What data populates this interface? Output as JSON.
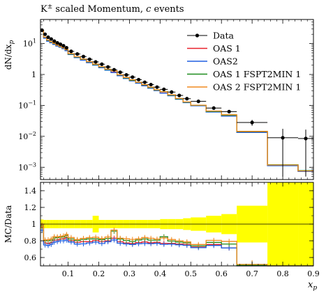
{
  "chart_data": {
    "type": "line",
    "title": "K± scaled Momentum, c events",
    "title_plain": "K",
    "title_sup": "±",
    "title_rest": " scaled Momentum, ",
    "title_italic": "c",
    "title_end": " events",
    "xlabel": "x",
    "xlabel_sub": "p",
    "ylabel_top": "dN/dx",
    "ylabel_top_sub": "p",
    "ylabel_ratio": "MC/Data",
    "xlim": [
      0.01,
      0.9
    ],
    "ylim_top": [
      0.0004,
      60
    ],
    "yscale_top": "log",
    "ylim_ratio": [
      0.5,
      1.5
    ],
    "x_ticks": [
      "0.1",
      "0.2",
      "0.3",
      "0.4",
      "0.5",
      "0.6",
      "0.7",
      "0.8",
      "0.9"
    ],
    "x_tick_values": [
      0.1,
      0.2,
      0.3,
      0.4,
      0.5,
      0.6,
      0.7,
      0.8,
      0.9
    ],
    "y_ticks_top": [
      {
        "value": 10,
        "label": "10",
        "sup": "1"
      },
      {
        "value": 1,
        "label": "1",
        "sup": ""
      },
      {
        "value": 0.1,
        "label": "10",
        "sup": "−1"
      },
      {
        "value": 0.01,
        "label": "10",
        "sup": "−2"
      },
      {
        "value": 0.001,
        "label": "10",
        "sup": "−3"
      }
    ],
    "y_ticks_ratio": [
      {
        "value": 0.6,
        "label": "0.6"
      },
      {
        "value": 0.8,
        "label": "0.8"
      },
      {
        "value": 1.0,
        "label": "1"
      },
      {
        "value": 1.2,
        "label": "1.2"
      },
      {
        "value": 1.4,
        "label": "1.4"
      }
    ],
    "legend_position": "top-right",
    "bin_edges": [
      0.01,
      0.02,
      0.03,
      0.04,
      0.05,
      0.06,
      0.07,
      0.08,
      0.09,
      0.1,
      0.12,
      0.14,
      0.16,
      0.18,
      0.2,
      0.22,
      0.24,
      0.26,
      0.28,
      0.3,
      0.32,
      0.34,
      0.36,
      0.38,
      0.4,
      0.425,
      0.45,
      0.475,
      0.5,
      0.55,
      0.6,
      0.65,
      0.75,
      0.85,
      0.9
    ],
    "data_label": "Data",
    "data_values": [
      27,
      20,
      16,
      14,
      12,
      10.5,
      9.5,
      8.5,
      7.3,
      5.6,
      4.6,
      3.8,
      3.1,
      2.55,
      2.15,
      1.75,
      1.42,
      1.18,
      0.97,
      0.82,
      0.68,
      0.56,
      0.47,
      0.39,
      0.33,
      0.27,
      0.21,
      0.165,
      0.135,
      0.082,
      0.063,
      0.028,
      0.009,
      0.0085
    ],
    "data_errors": [
      1.5,
      1.0,
      0.8,
      0.7,
      0.6,
      0.5,
      0.45,
      0.4,
      0.35,
      0.28,
      0.22,
      0.18,
      0.15,
      0.12,
      0.1,
      0.08,
      0.07,
      0.06,
      0.05,
      0.04,
      0.035,
      0.03,
      0.025,
      0.02,
      0.018,
      0.015,
      0.013,
      0.011,
      0.01,
      0.008,
      0.007,
      0.006,
      0.0085,
      0.008
    ],
    "series": [
      {
        "name": "OAS 1",
        "color": "#e8202a",
        "values": [
          26,
          15.5,
          12.3,
          10.9,
          9.7,
          8.5,
          7.8,
          7.0,
          6.1,
          4.5,
          3.6,
          3.0,
          2.45,
          2.05,
          1.7,
          1.4,
          1.18,
          0.93,
          0.75,
          0.63,
          0.53,
          0.44,
          0.365,
          0.305,
          0.254,
          0.208,
          0.16,
          0.125,
          0.098,
          0.062,
          0.045,
          0.0135,
          0.00115,
          0.00075
        ]
      },
      {
        "name": "OAS2",
        "color": "#1f5fe0",
        "values": [
          25,
          15.0,
          11.9,
          10.6,
          9.4,
          8.3,
          7.6,
          6.8,
          5.9,
          4.4,
          3.5,
          2.9,
          2.4,
          2.0,
          1.65,
          1.38,
          1.15,
          0.91,
          0.74,
          0.62,
          0.52,
          0.43,
          0.36,
          0.3,
          0.25,
          0.205,
          0.158,
          0.123,
          0.097,
          0.061,
          0.045,
          0.0133,
          0.00112,
          0.00073
        ]
      },
      {
        "name": "OAS 1 FSPT2MIN 1",
        "color": "#1c8a1c",
        "values": [
          26.5,
          16.0,
          12.8,
          11.3,
          10.0,
          8.8,
          8.0,
          7.2,
          6.3,
          4.6,
          3.7,
          3.1,
          2.55,
          2.1,
          1.75,
          1.45,
          1.3,
          0.97,
          0.78,
          0.65,
          0.55,
          0.46,
          0.38,
          0.315,
          0.28,
          0.215,
          0.165,
          0.128,
          0.1,
          0.064,
          0.048,
          0.0142,
          0.0012,
          0.00078
        ]
      },
      {
        "name": "OAS 2 FSPT2MIN 1",
        "color": "#f08a1e",
        "values": [
          26.8,
          16.2,
          13.0,
          11.5,
          10.2,
          8.9,
          8.1,
          7.3,
          6.4,
          4.7,
          3.75,
          3.15,
          2.6,
          2.15,
          1.78,
          1.48,
          1.32,
          0.98,
          0.8,
          0.67,
          0.56,
          0.47,
          0.39,
          0.32,
          0.275,
          0.22,
          0.168,
          0.13,
          0.102,
          0.066,
          0.05,
          0.0145,
          0.00118,
          0.00076
        ]
      }
    ],
    "ratio_band": {
      "color": "#ffff00",
      "half_width": [
        0.055,
        0.05,
        0.05,
        0.05,
        0.05,
        0.05,
        0.05,
        0.05,
        0.05,
        0.05,
        0.05,
        0.05,
        0.05,
        0.1,
        0.05,
        0.05,
        0.05,
        0.05,
        0.05,
        0.05,
        0.05,
        0.05,
        0.05,
        0.05,
        0.06,
        0.06,
        0.06,
        0.07,
        0.08,
        0.1,
        0.12,
        0.22,
        0.9,
        0.9
      ]
    }
  }
}
